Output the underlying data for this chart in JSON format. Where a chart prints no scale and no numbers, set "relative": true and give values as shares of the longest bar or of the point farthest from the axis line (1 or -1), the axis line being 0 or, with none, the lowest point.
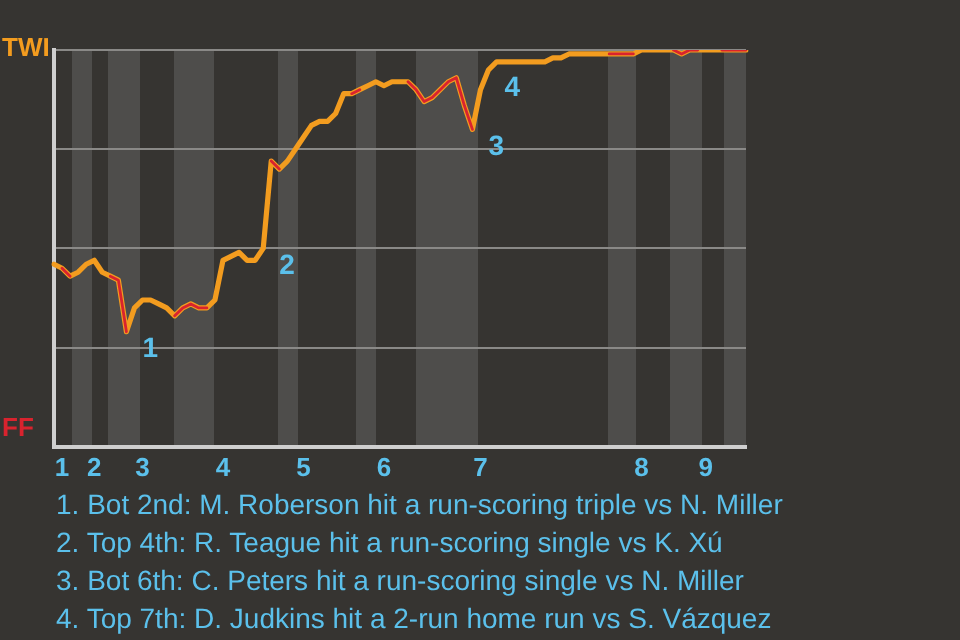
{
  "chart_data": {
    "type": "line",
    "relative": true,
    "categories": [
      null,
      "1",
      null,
      null,
      null,
      "2",
      null,
      null,
      null,
      null,
      null,
      "3",
      null,
      null,
      null,
      null,
      null,
      null,
      null,
      null,
      null,
      "4",
      null,
      null,
      null,
      null,
      null,
      null,
      null,
      null,
      null,
      "5",
      null,
      null,
      null,
      null,
      null,
      null,
      null,
      null,
      null,
      "6",
      null,
      null,
      null,
      null,
      null,
      null,
      null,
      null,
      null,
      null,
      null,
      "7",
      null,
      null,
      null,
      null,
      null,
      null,
      null,
      null,
      null,
      null,
      null,
      null,
      null,
      null,
      null,
      null,
      null,
      null,
      null,
      "8",
      null,
      null,
      null,
      null,
      null,
      null,
      null,
      "9",
      null,
      null,
      null,
      null,
      null
    ],
    "series": [
      {
        "color": "#f39c1f",
        "values": [
          0.46,
          0.45,
          0.43,
          0.44,
          0.46,
          0.47,
          0.44,
          0.43,
          0.42,
          0.29,
          0.35,
          0.37,
          0.37,
          0.36,
          0.35,
          0.33,
          0.35,
          0.36,
          0.35,
          0.35,
          0.37,
          0.47,
          0.48,
          0.49,
          0.47,
          0.47,
          0.5,
          0.72,
          0.7,
          0.72,
          0.75,
          0.78,
          0.81,
          0.82,
          0.82,
          0.84,
          0.89,
          0.89,
          0.9,
          0.91,
          0.92,
          0.91,
          0.92,
          0.92,
          0.92,
          0.9,
          0.87,
          0.88,
          0.9,
          0.92,
          0.93,
          0.86,
          0.8,
          0.9,
          0.95,
          0.97,
          0.97,
          0.97,
          0.97,
          0.97,
          0.97,
          0.97,
          0.98,
          0.98,
          0.99,
          0.99,
          0.99,
          0.99,
          0.99,
          0.99,
          0.99,
          0.99,
          0.99,
          1,
          1,
          1,
          1,
          1,
          0.99,
          1,
          1,
          1,
          1,
          1,
          1,
          1,
          1
        ],
        "name": null
      },
      {
        "color": "#d9232e",
        "values": [
          null,
          0.45,
          0.43,
          null,
          null,
          null,
          null,
          0.43,
          0.42,
          0.29,
          null,
          null,
          null,
          null,
          null,
          0.33,
          0.35,
          0.36,
          0.35,
          0.35,
          null,
          null,
          null,
          null,
          null,
          null,
          null,
          0.72,
          0.7,
          null,
          null,
          null,
          null,
          null,
          null,
          null,
          null,
          0.89,
          0.9,
          null,
          null,
          null,
          null,
          null,
          0.92,
          0.9,
          0.87,
          0.88,
          0.9,
          0.92,
          0.93,
          0.86,
          0.8,
          null,
          null,
          null,
          null,
          null,
          null,
          null,
          null,
          null,
          null,
          null,
          null,
          null,
          null,
          null,
          null,
          0.99,
          0.99,
          0.99,
          0.99,
          null,
          null,
          null,
          null,
          1,
          0.99,
          1,
          1,
          null,
          null,
          1,
          1,
          1,
          1
        ]
      }
    ],
    "grid": "y",
    "legend": false,
    "marker": "none",
    "line_style": "solid",
    "annotations": [
      "TWI",
      "FF",
      "1",
      "2",
      "3",
      "4",
      "1. Bot 2nd: M. Roberson hit a run-scoring triple vs N. Miller",
      "2. Top 4th: R. Teague hit a run-scoring single vs K. Xú",
      "3. Bot 6th: C. Peters hit a run-scoring single vs N. Miller",
      "4. Top 7th: D. Judkins hit a 2-run home run vs S. Vázquez"
    ]
  }
}
